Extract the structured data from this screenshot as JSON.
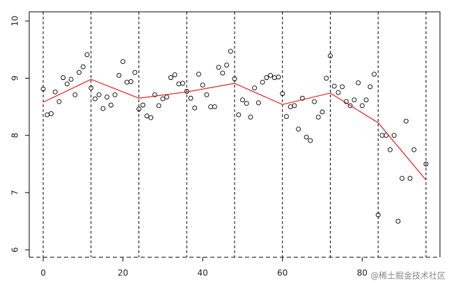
{
  "chart_data": {
    "type": "scatter",
    "x": [
      0,
      1,
      2,
      3,
      4,
      5,
      6,
      7,
      8,
      9,
      10,
      11,
      12,
      13,
      14,
      15,
      16,
      17,
      18,
      19,
      20,
      21,
      22,
      23,
      24,
      25,
      26,
      27,
      28,
      29,
      30,
      31,
      32,
      33,
      34,
      35,
      36,
      37,
      38,
      39,
      40,
      41,
      42,
      43,
      44,
      45,
      46,
      47,
      48,
      49,
      50,
      51,
      52,
      53,
      54,
      55,
      56,
      57,
      58,
      59,
      60,
      61,
      62,
      63,
      64,
      65,
      66,
      67,
      68,
      69,
      70,
      71,
      72,
      73,
      74,
      75,
      76,
      77,
      78,
      79,
      80,
      81,
      82,
      83,
      84,
      85,
      86,
      87,
      88,
      89,
      90,
      91,
      92,
      93,
      96
    ],
    "values": [
      8.81,
      8.36,
      8.38,
      8.76,
      8.59,
      9.01,
      8.9,
      8.98,
      8.71,
      9.1,
      9.2,
      9.41,
      8.83,
      8.64,
      8.71,
      8.47,
      8.67,
      8.53,
      8.71,
      9.05,
      9.29,
      8.93,
      8.94,
      9.1,
      8.46,
      8.53,
      8.34,
      8.31,
      8.71,
      8.52,
      8.64,
      8.67,
      9.01,
      9.06,
      8.9,
      8.91,
      8.77,
      8.65,
      8.48,
      9.07,
      8.88,
      8.71,
      8.5,
      8.5,
      9.19,
      9.09,
      9.23,
      9.47,
      8.99,
      8.36,
      8.62,
      8.56,
      8.32,
      8.83,
      8.57,
      8.93,
      9.01,
      9.05,
      9.01,
      9.02,
      8.73,
      8.33,
      8.5,
      8.52,
      8.11,
      8.65,
      7.97,
      7.91,
      8.59,
      8.32,
      8.41,
      9.0,
      9.39,
      8.86,
      8.75,
      8.85,
      8.59,
      8.52,
      8.62,
      8.92,
      8.52,
      8.62,
      8.85,
      9.07,
      6.61,
      8.0,
      8.0,
      7.75,
      8.0,
      6.5,
      7.25,
      8.25,
      7.25,
      7.75,
      7.5
    ],
    "color": "#000000",
    "fit": {
      "x": [
        0,
        12,
        24,
        36,
        48,
        60,
        72,
        84,
        96
      ],
      "values": [
        8.58,
        8.98,
        8.65,
        8.76,
        8.91,
        8.54,
        8.74,
        8.22,
        7.22
      ],
      "color": "#e41a1c"
    },
    "knots": [
      0,
      12,
      24,
      36,
      48,
      60,
      72,
      84,
      96
    ],
    "xlim": [
      -3.5,
      99.5
    ],
    "ylim": [
      5.87,
      10.16
    ],
    "xticks": [
      0,
      20,
      40,
      60,
      80
    ],
    "yticks": [
      6,
      7,
      8,
      9,
      10
    ],
    "annotation": "@稀土掘金技术社区"
  }
}
